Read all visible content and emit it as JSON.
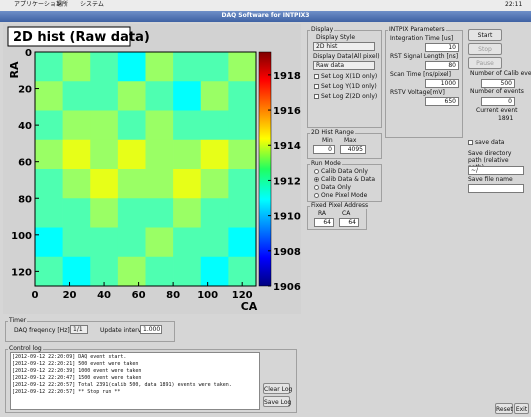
{
  "menubar": {
    "items": [
      "アプリケーション",
      "場所",
      "システム"
    ],
    "clock": "22:11"
  },
  "window_title": "DAQ Software for INTPIX3",
  "chart_data": {
    "type": "heatmap",
    "title": "2D hist (Raw data)",
    "xlabel": "CA",
    "ylabel": "RA",
    "xlim": [
      0,
      128
    ],
    "ylim": [
      0,
      128
    ],
    "xticks": [
      0,
      20,
      40,
      60,
      80,
      100,
      120
    ],
    "yticks": [
      0,
      20,
      40,
      60,
      80,
      100,
      120
    ],
    "zlim": [
      1906,
      1919.3
    ],
    "zticks": [
      1906,
      1908,
      1910,
      1912,
      1914,
      1916,
      1918
    ],
    "colormap": "jet",
    "values": [
      [
        1912,
        1913,
        1912,
        1911,
        1913,
        1912,
        1912,
        1913
      ],
      [
        1913,
        1912,
        1912,
        1913,
        1912,
        1911,
        1913,
        1912
      ],
      [
        1912,
        1913,
        1913,
        1912,
        1913,
        1912,
        1912,
        1912
      ],
      [
        1913,
        1914,
        1913,
        1914,
        1913,
        1913,
        1914,
        1913
      ],
      [
        1912,
        1913,
        1914,
        1913,
        1913,
        1914,
        1913,
        1912
      ],
      [
        1912,
        1912,
        1913,
        1912,
        1912,
        1913,
        1912,
        1912
      ],
      [
        1911,
        1912,
        1912,
        1912,
        1913,
        1912,
        1912,
        1911
      ],
      [
        1912,
        1911,
        1912,
        1913,
        1912,
        1912,
        1911,
        1912
      ]
    ]
  },
  "display": {
    "title": "Display",
    "style_label": "Display Style",
    "style": "2D hist",
    "data_label": "Display Data(All pixel)",
    "data": "Raw data",
    "log_options": [
      "Set Log X(1D only)",
      "Set Log Y(1D only)",
      "Set Log Z(2D only)"
    ]
  },
  "hist_range": {
    "title": "2D Hist Range",
    "min_label": "Min",
    "max_label": "Max",
    "min": 0,
    "max": 4095
  },
  "run_mode": {
    "title": "Run Mode",
    "options": [
      "Calib Data Only",
      "Calib Data & Data",
      "Data Only",
      "One Pixel Mode"
    ],
    "selected": 1
  },
  "fixed_pixel": {
    "title": "Fixed Pixel Address",
    "ra_label": "RA",
    "ca_label": "CA",
    "ra": 64,
    "ca": 64
  },
  "intpix": {
    "title": "INTPIX Parameters",
    "params": [
      {
        "label": "Integration Time [us]",
        "value": 10
      },
      {
        "label": "RST Signal Length [ns]",
        "value": 80
      },
      {
        "label": "Scan Time [ns/pixel]",
        "value": 1000
      },
      {
        "label": "RSTV Voltage[mV]",
        "value": 650
      }
    ]
  },
  "buttons": {
    "start": "Start",
    "stop": "Stop",
    "pause": "Pause"
  },
  "counters": [
    {
      "label": "Number of Calib event",
      "value": 500
    },
    {
      "label": "Number of events",
      "value": 0
    },
    {
      "label": "Current event",
      "value": 1891
    }
  ],
  "save": {
    "checkbox": "save data",
    "dir_label": "Save directory path (relative path)",
    "dir": "~/",
    "file_label": "Save file name"
  },
  "timer": {
    "title": "Timer",
    "freq_label": "DAQ freqency [Hz]",
    "freq": "1/1",
    "interval_label": "Update interval [s]",
    "interval": "1.000"
  },
  "log": {
    "title": "Control log",
    "lines": [
      "[2012-09-12 22:20:09] DAQ event start.",
      "[2012-09-12 22:20:21] 500 event were taken",
      "[2012-09-12 22:20:39] 1000 event were taken",
      "[2012-09-12 22:20:47] 1500 event were taken",
      "[2012-09-12 22:20:57] Total 2391(calib 500, data 1891) events were taken.",
      "[2012-09-12 22:20:57] ** Stop run **"
    ],
    "clear": "Clear Log",
    "save": "Save Log"
  },
  "footer_buttons": {
    "reset": "Reset",
    "exit": "Exit"
  }
}
